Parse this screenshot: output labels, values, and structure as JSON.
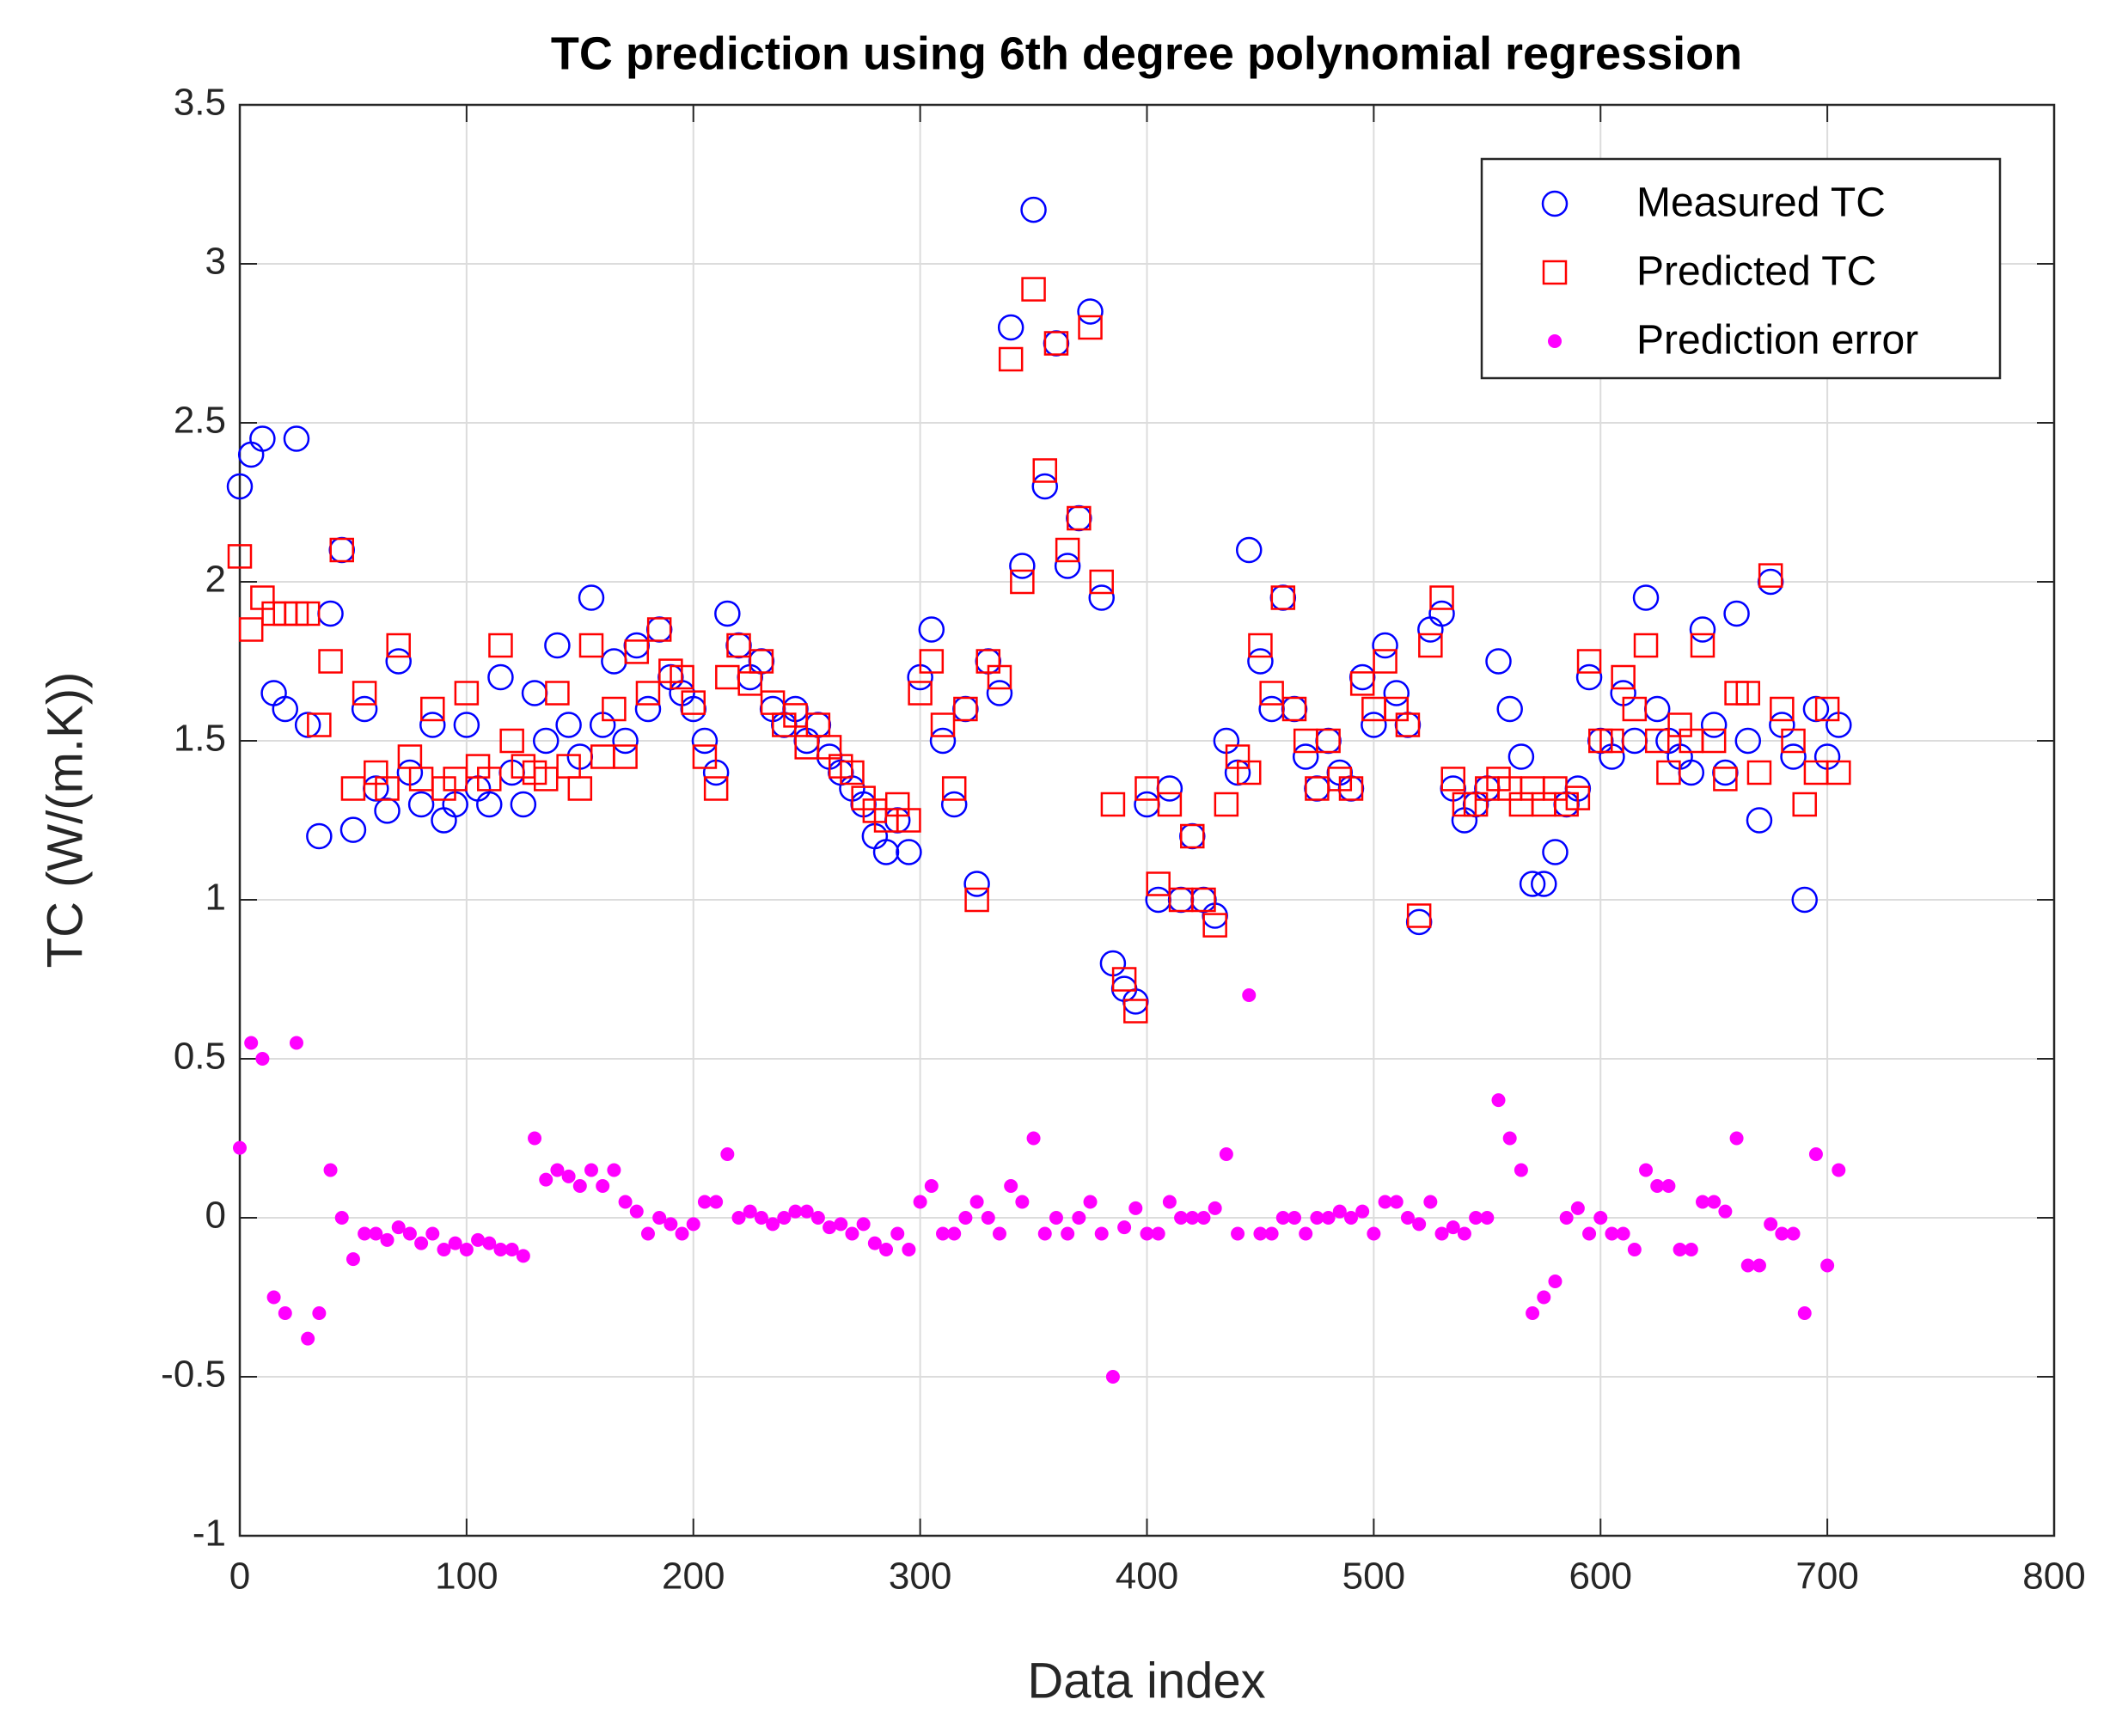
{
  "chart_data": {
    "type": "scatter",
    "title": "TC prediction using 6th degree polynomial regression",
    "xlabel": "Data index",
    "ylabel": "TC  (W/(m.K))",
    "xlim": [
      0,
      800
    ],
    "xticks": [
      0,
      100,
      200,
      300,
      400,
      500,
      600,
      700,
      800
    ],
    "ylim": [
      -1,
      3.5
    ],
    "yticks": [
      -1,
      -0.5,
      0,
      0.5,
      1,
      1.5,
      2,
      2.5,
      3,
      3.5
    ],
    "grid": true,
    "legend": "northeast",
    "x": [
      0,
      5,
      10,
      15,
      20,
      25,
      30,
      35,
      40,
      45,
      50,
      55,
      60,
      65,
      70,
      75,
      80,
      85,
      90,
      95,
      100,
      105,
      110,
      115,
      120,
      125,
      130,
      135,
      140,
      145,
      150,
      155,
      160,
      165,
      170,
      175,
      180,
      185,
      190,
      195,
      200,
      205,
      210,
      215,
      220,
      225,
      230,
      235,
      240,
      245,
      250,
      255,
      260,
      265,
      270,
      275,
      280,
      285,
      290,
      295,
      300,
      305,
      310,
      315,
      320,
      325,
      330,
      335,
      340,
      345,
      350,
      355,
      360,
      365,
      370,
      375,
      380,
      385,
      390,
      395,
      400,
      405,
      410,
      415,
      420,
      425,
      430,
      435,
      440,
      445,
      450,
      455,
      460,
      465,
      470,
      475,
      480,
      485,
      490,
      495,
      500,
      505,
      510,
      515,
      520,
      525,
      530,
      535,
      540,
      545,
      550,
      555,
      560,
      565,
      570,
      575,
      580,
      585,
      590,
      595,
      600,
      605,
      610,
      615,
      620,
      625,
      630,
      635,
      640,
      645,
      650,
      655,
      660,
      665,
      670,
      675,
      680,
      685,
      690,
      695,
      700,
      705
    ],
    "series": [
      {
        "name": "Measured TC",
        "color": "#0000ff",
        "marker": "circle",
        "values": [
          2.3,
          2.4,
          2.45,
          1.65,
          1.6,
          2.45,
          1.55,
          1.2,
          1.9,
          2.1,
          1.22,
          1.6,
          1.35,
          1.28,
          1.75,
          1.4,
          1.3,
          1.55,
          1.25,
          1.3,
          1.55,
          1.35,
          1.3,
          1.7,
          1.4,
          1.3,
          1.65,
          1.5,
          1.8,
          1.55,
          1.45,
          1.95,
          1.55,
          1.75,
          1.5,
          1.8,
          1.6,
          1.85,
          1.7,
          1.65,
          1.6,
          1.5,
          1.4,
          1.9,
          1.8,
          1.7,
          1.75,
          1.6,
          1.55,
          1.6,
          1.5,
          1.55,
          1.45,
          1.4,
          1.35,
          1.3,
          1.2,
          1.15,
          1.25,
          1.15,
          1.7,
          1.85,
          1.5,
          1.3,
          1.6,
          1.05,
          1.75,
          1.65,
          2.8,
          2.05,
          3.17,
          2.3,
          2.75,
          2.05,
          2.2,
          2.85,
          1.95,
          0.8,
          0.72,
          0.68,
          1.3,
          1.0,
          1.35,
          1.0,
          1.2,
          1.0,
          0.95,
          1.5,
          1.4,
          2.1,
          1.75,
          1.6,
          1.95,
          1.6,
          1.45,
          1.35,
          1.5,
          1.4,
          1.35,
          1.7,
          1.55,
          1.8,
          1.65,
          1.55,
          0.93,
          1.85,
          1.9,
          1.35,
          1.25,
          1.3,
          1.35,
          1.75,
          1.6,
          1.45,
          1.05,
          1.05,
          1.15,
          1.3,
          1.35,
          1.7,
          1.5,
          1.45,
          1.65,
          1.5,
          1.95,
          1.6,
          1.5,
          1.45,
          1.4,
          1.85,
          1.55,
          1.4,
          1.9,
          1.5,
          1.25,
          2.0,
          1.55,
          1.45,
          1.0,
          1.6,
          1.45,
          1.55
        ]
      },
      {
        "name": "Predicted TC",
        "color": "#ff0000",
        "marker": "square",
        "values": [
          2.08,
          1.85,
          1.95,
          1.9,
          1.9,
          1.9,
          1.9,
          1.55,
          1.75,
          2.1,
          1.35,
          1.65,
          1.4,
          1.35,
          1.8,
          1.45,
          1.38,
          1.6,
          1.35,
          1.38,
          1.65,
          1.42,
          1.38,
          1.8,
          1.5,
          1.42,
          1.4,
          1.38,
          1.65,
          1.42,
          1.35,
          1.8,
          1.45,
          1.6,
          1.45,
          1.78,
          1.65,
          1.85,
          1.72,
          1.7,
          1.62,
          1.45,
          1.35,
          1.7,
          1.8,
          1.68,
          1.75,
          1.62,
          1.55,
          1.58,
          1.48,
          1.55,
          1.48,
          1.42,
          1.4,
          1.32,
          1.28,
          1.25,
          1.3,
          1.25,
          1.65,
          1.75,
          1.55,
          1.35,
          1.6,
          1.0,
          1.75,
          1.7,
          2.7,
          2.0,
          2.92,
          2.35,
          2.75,
          2.1,
          2.2,
          2.8,
          2.0,
          1.3,
          0.75,
          0.65,
          1.35,
          1.05,
          1.3,
          1.0,
          1.2,
          1.0,
          0.92,
          1.3,
          1.45,
          1.4,
          1.8,
          1.65,
          1.95,
          1.6,
          1.5,
          1.35,
          1.5,
          1.38,
          1.35,
          1.68,
          1.6,
          1.75,
          1.6,
          1.55,
          0.95,
          1.8,
          1.95,
          1.38,
          1.3,
          1.3,
          1.35,
          1.38,
          1.35,
          1.3,
          1.35,
          1.3,
          1.35,
          1.3,
          1.32,
          1.75,
          1.5,
          1.5,
          1.7,
          1.6,
          1.8,
          1.5,
          1.4,
          1.55,
          1.5,
          1.8,
          1.5,
          1.38,
          1.65,
          1.65,
          1.4,
          2.02,
          1.6,
          1.5,
          1.3,
          1.4,
          1.6,
          1.4
        ]
      },
      {
        "name": "Prediction error",
        "color": "#ff00ff",
        "marker": "dot",
        "values": [
          0.22,
          0.55,
          0.5,
          -0.25,
          -0.3,
          0.55,
          -0.38,
          -0.3,
          0.15,
          0.0,
          -0.13,
          -0.05,
          -0.05,
          -0.07,
          -0.03,
          -0.05,
          -0.08,
          -0.05,
          -0.1,
          -0.08,
          -0.1,
          -0.07,
          -0.08,
          -0.1,
          -0.1,
          -0.12,
          0.25,
          0.12,
          0.15,
          0.13,
          0.1,
          0.15,
          0.1,
          0.15,
          0.05,
          0.02,
          -0.05,
          0.0,
          -0.02,
          -0.05,
          -0.02,
          0.05,
          0.05,
          0.2,
          0.0,
          0.02,
          0.0,
          -0.02,
          0.0,
          0.02,
          0.02,
          0.0,
          -0.03,
          -0.02,
          -0.05,
          -0.02,
          -0.08,
          -0.1,
          -0.05,
          -0.1,
          0.05,
          0.1,
          -0.05,
          -0.05,
          0.0,
          0.05,
          0.0,
          -0.05,
          0.1,
          0.05,
          0.25,
          -0.05,
          0.0,
          -0.05,
          0.0,
          0.05,
          -0.05,
          -0.5,
          -0.03,
          0.03,
          -0.05,
          -0.05,
          0.05,
          0.0,
          0.0,
          0.0,
          0.03,
          0.2,
          -0.05,
          0.7,
          -0.05,
          -0.05,
          0.0,
          0.0,
          -0.05,
          0.0,
          0.0,
          0.02,
          0.0,
          0.02,
          -0.05,
          0.05,
          0.05,
          0.0,
          -0.02,
          0.05,
          -0.05,
          -0.03,
          -0.05,
          0.0,
          0.0,
          0.37,
          0.25,
          0.15,
          -0.3,
          -0.25,
          -0.2,
          0.0,
          0.03,
          -0.05,
          0.0,
          -0.05,
          -0.05,
          -0.1,
          0.15,
          0.1,
          0.1,
          -0.1,
          -0.1,
          0.05,
          0.05,
          0.02,
          0.25,
          -0.15,
          -0.15,
          -0.02,
          -0.05,
          -0.05,
          -0.3,
          0.2,
          -0.15,
          0.15
        ]
      }
    ]
  }
}
